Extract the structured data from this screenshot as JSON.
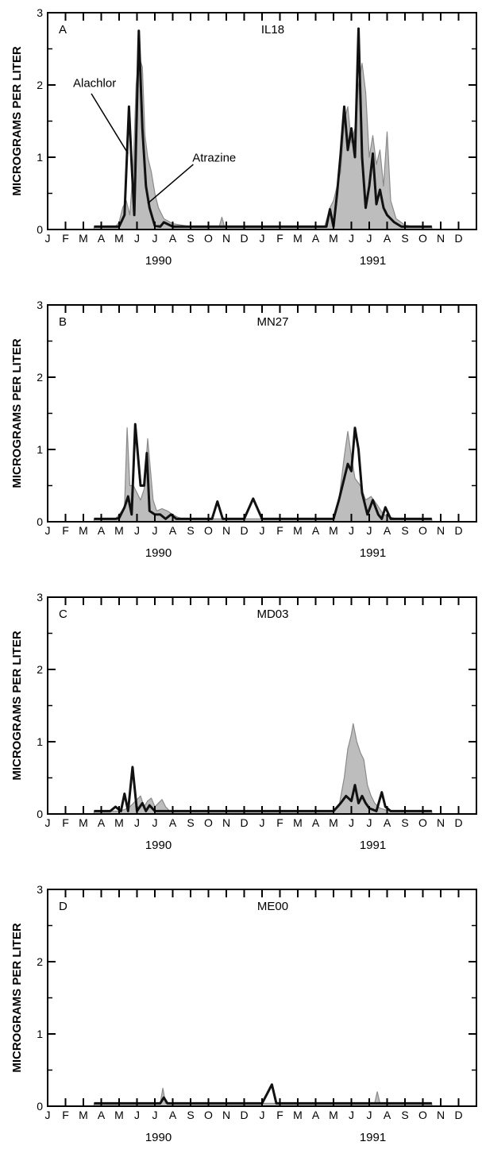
{
  "chart_data": [
    {
      "type": "area",
      "panel_letter": "A",
      "site": "IL18",
      "ylabel": "MICROGRAMS PER LITER",
      "ylim": [
        0,
        3
      ],
      "y_ticks": [
        "0",
        "1",
        "2",
        "3"
      ],
      "x_tick_labels": [
        "J",
        "F",
        "M",
        "A",
        "M",
        "J",
        "J",
        "A",
        "S",
        "O",
        "N",
        "D",
        "J",
        "F",
        "M",
        "A",
        "M",
        "J",
        "J",
        "A",
        "S",
        "O",
        "N",
        "D"
      ],
      "x_range_months": [
        0,
        24
      ],
      "year_labels": [
        "1990",
        "1991"
      ],
      "series_labels": {
        "alachlor": "Alachlor",
        "atrazine": "Atrazine"
      },
      "series": [
        {
          "name": "Atrazine",
          "style": "shaded area",
          "x": [
            2.6,
            3.5,
            3.8,
            4.0,
            4.2,
            4.4,
            4.6,
            4.8,
            4.95,
            5.1,
            5.3,
            5.45,
            5.6,
            5.8,
            6.0,
            6.2,
            6.5,
            7.0,
            7.5,
            8.0,
            9.0,
            9.6,
            9.75,
            9.9,
            10.5,
            11.0,
            12.0,
            13.0,
            14.0,
            15.5,
            15.8,
            16.0,
            16.2,
            16.4,
            16.6,
            16.8,
            17.0,
            17.2,
            17.4,
            17.6,
            17.8,
            18.0,
            18.2,
            18.4,
            18.6,
            18.8,
            19.0,
            19.2,
            19.5,
            20.0,
            20.5,
            21.5
          ],
          "y": [
            0.04,
            0.04,
            0.04,
            0.1,
            0.3,
            0.4,
            0.2,
            0.9,
            2.0,
            2.4,
            2.25,
            1.3,
            1.0,
            0.8,
            0.5,
            0.3,
            0.15,
            0.08,
            0.06,
            0.04,
            0.04,
            0.04,
            0.17,
            0.04,
            0.04,
            0.04,
            0.04,
            0.04,
            0.04,
            0.04,
            0.3,
            0.4,
            0.6,
            0.8,
            1.5,
            1.7,
            1.2,
            1.4,
            2.0,
            2.3,
            1.9,
            1.0,
            1.3,
            0.9,
            1.1,
            0.6,
            1.35,
            0.4,
            0.15,
            0.06,
            0.04,
            0.04
          ]
        },
        {
          "name": "Alachlor",
          "style": "heavy line",
          "x": [
            2.6,
            3.5,
            3.8,
            4.0,
            4.3,
            4.55,
            4.7,
            4.85,
            5.1,
            5.3,
            5.5,
            5.7,
            6.0,
            6.3,
            6.5,
            7.0,
            7.5,
            8.0,
            9.0,
            10.0,
            11.0,
            12.0,
            13.0,
            14.0,
            15.0,
            15.6,
            15.8,
            16.0,
            16.2,
            16.4,
            16.6,
            16.8,
            17.0,
            17.2,
            17.4,
            17.6,
            17.8,
            18.0,
            18.2,
            18.4,
            18.6,
            18.8,
            19.0,
            19.4,
            19.8,
            20.5,
            21.5
          ],
          "y": [
            0.04,
            0.04,
            0.04,
            0.04,
            0.2,
            1.7,
            0.9,
            0.2,
            2.75,
            1.4,
            0.6,
            0.3,
            0.05,
            0.04,
            0.1,
            0.04,
            0.04,
            0.04,
            0.04,
            0.04,
            0.04,
            0.04,
            0.04,
            0.04,
            0.04,
            0.04,
            0.28,
            0.04,
            0.5,
            1.05,
            1.7,
            1.1,
            1.4,
            1.0,
            2.78,
            1.0,
            0.3,
            0.6,
            1.05,
            0.35,
            0.55,
            0.3,
            0.2,
            0.1,
            0.04,
            0.04,
            0.04
          ]
        }
      ]
    },
    {
      "type": "area",
      "panel_letter": "B",
      "site": "MN27",
      "ylabel": "MICROGRAMS PER LITER",
      "ylim": [
        0,
        3
      ],
      "y_ticks": [
        "0",
        "1",
        "2",
        "3"
      ],
      "x_tick_labels": [
        "J",
        "F",
        "M",
        "A",
        "M",
        "J",
        "J",
        "A",
        "S",
        "O",
        "N",
        "D",
        "J",
        "F",
        "M",
        "A",
        "M",
        "J",
        "J",
        "A",
        "S",
        "O",
        "N",
        "D"
      ],
      "x_range_months": [
        0,
        24
      ],
      "year_labels": [
        "1990",
        "1991"
      ],
      "series": [
        {
          "name": "Atrazine",
          "style": "shaded area",
          "x": [
            2.6,
            3.5,
            3.8,
            4.0,
            4.3,
            4.45,
            4.6,
            4.8,
            5.0,
            5.2,
            5.4,
            5.6,
            5.9,
            6.1,
            6.4,
            6.7,
            7.0,
            7.3,
            7.6,
            8.0,
            9.0,
            10.0,
            11.0,
            12.0,
            13.0,
            14.0,
            15.5,
            16.0,
            16.3,
            16.6,
            16.8,
            17.0,
            17.2,
            17.5,
            17.8,
            18.1,
            18.4,
            18.8,
            19.2,
            19.6,
            20.0,
            21.5
          ],
          "y": [
            0.04,
            0.04,
            0.04,
            0.1,
            0.2,
            1.3,
            0.5,
            0.5,
            0.4,
            0.3,
            0.45,
            1.15,
            0.3,
            0.15,
            0.18,
            0.15,
            0.1,
            0.06,
            0.04,
            0.04,
            0.04,
            0.04,
            0.04,
            0.04,
            0.04,
            0.04,
            0.04,
            0.04,
            0.3,
            0.9,
            1.25,
            0.9,
            0.6,
            0.5,
            0.3,
            0.35,
            0.25,
            0.1,
            0.06,
            0.04,
            0.04,
            0.04
          ]
        },
        {
          "name": "Alachlor",
          "style": "heavy line",
          "x": [
            2.6,
            3.5,
            3.8,
            4.0,
            4.3,
            4.5,
            4.7,
            4.9,
            5.2,
            5.4,
            5.55,
            5.7,
            6.0,
            6.3,
            6.6,
            6.9,
            7.2,
            7.6,
            8.0,
            8.5,
            9.2,
            9.5,
            9.8,
            10.2,
            11.0,
            11.5,
            12.0,
            12.5,
            13.0,
            14.0,
            15.0,
            16.0,
            16.3,
            16.6,
            16.8,
            17.0,
            17.2,
            17.4,
            17.6,
            17.9,
            18.2,
            18.5,
            18.7,
            18.9,
            19.2,
            19.5,
            19.8,
            20.0,
            21.5
          ],
          "y": [
            0.04,
            0.04,
            0.04,
            0.05,
            0.2,
            0.35,
            0.1,
            1.35,
            0.5,
            0.5,
            0.95,
            0.15,
            0.1,
            0.1,
            0.04,
            0.1,
            0.04,
            0.04,
            0.04,
            0.04,
            0.04,
            0.28,
            0.04,
            0.04,
            0.04,
            0.32,
            0.04,
            0.04,
            0.04,
            0.04,
            0.04,
            0.04,
            0.3,
            0.6,
            0.8,
            0.7,
            1.3,
            1.0,
            0.4,
            0.1,
            0.3,
            0.1,
            0.04,
            0.2,
            0.04,
            0.04,
            0.04,
            0.04,
            0.04
          ]
        }
      ]
    },
    {
      "type": "area",
      "panel_letter": "C",
      "site": "MD03",
      "ylabel": "MICROGRAMS PER LITER",
      "ylim": [
        0,
        3
      ],
      "y_ticks": [
        "0",
        "1",
        "2",
        "3"
      ],
      "x_tick_labels": [
        "J",
        "F",
        "M",
        "A",
        "M",
        "J",
        "J",
        "A",
        "S",
        "O",
        "N",
        "D",
        "J",
        "F",
        "M",
        "A",
        "M",
        "J",
        "J",
        "A",
        "S",
        "O",
        "N",
        "D"
      ],
      "x_range_months": [
        0,
        24
      ],
      "year_labels": [
        "1990",
        "1991"
      ],
      "series": [
        {
          "name": "Atrazine",
          "style": "shaded area",
          "x": [
            2.6,
            3.5,
            4.0,
            4.3,
            4.6,
            4.8,
            5.0,
            5.2,
            5.4,
            5.6,
            5.8,
            6.0,
            6.2,
            6.4,
            6.6,
            6.8,
            7.0,
            7.5,
            8.0,
            9.0,
            10.0,
            11.0,
            12.0,
            13.0,
            14.0,
            15.0,
            15.5,
            16.0,
            16.3,
            16.6,
            16.8,
            17.0,
            17.1,
            17.3,
            17.5,
            17.7,
            17.9,
            18.1,
            18.3,
            18.6,
            19.0,
            19.5,
            20.0,
            21.5
          ],
          "y": [
            0.04,
            0.04,
            0.04,
            0.06,
            0.1,
            0.15,
            0.2,
            0.25,
            0.1,
            0.18,
            0.22,
            0.1,
            0.15,
            0.2,
            0.1,
            0.05,
            0.04,
            0.04,
            0.04,
            0.04,
            0.04,
            0.04,
            0.04,
            0.04,
            0.04,
            0.04,
            0.04,
            0.04,
            0.1,
            0.5,
            0.9,
            1.1,
            1.25,
            1.0,
            0.85,
            0.75,
            0.4,
            0.25,
            0.15,
            0.08,
            0.05,
            0.04,
            0.04,
            0.04
          ]
        },
        {
          "name": "Alachlor",
          "style": "heavy line",
          "x": [
            2.6,
            3.5,
            3.8,
            4.1,
            4.3,
            4.5,
            4.75,
            5.0,
            5.3,
            5.5,
            5.7,
            6.0,
            6.2,
            6.5,
            7.0,
            8.0,
            9.0,
            10.0,
            11.0,
            12.0,
            13.0,
            14.0,
            15.5,
            16.0,
            16.4,
            16.7,
            17.0,
            17.2,
            17.4,
            17.6,
            17.8,
            18.0,
            18.4,
            18.7,
            18.9,
            19.2,
            19.5,
            20.0,
            21.5
          ],
          "y": [
            0.04,
            0.04,
            0.1,
            0.04,
            0.28,
            0.04,
            0.65,
            0.04,
            0.15,
            0.04,
            0.12,
            0.04,
            0.04,
            0.04,
            0.04,
            0.04,
            0.04,
            0.04,
            0.04,
            0.04,
            0.04,
            0.04,
            0.04,
            0.04,
            0.15,
            0.25,
            0.18,
            0.4,
            0.15,
            0.25,
            0.15,
            0.08,
            0.04,
            0.3,
            0.1,
            0.04,
            0.04,
            0.04,
            0.04
          ]
        }
      ]
    },
    {
      "type": "area",
      "panel_letter": "D",
      "site": "ME00",
      "ylabel": "MICROGRAMS PER LITER",
      "ylim": [
        0,
        3
      ],
      "y_ticks": [
        "0",
        "1",
        "2",
        "3"
      ],
      "x_tick_labels": [
        "J",
        "F",
        "M",
        "A",
        "M",
        "J",
        "J",
        "A",
        "S",
        "O",
        "N",
        "D",
        "J",
        "F",
        "M",
        "A",
        "M",
        "J",
        "J",
        "A",
        "S",
        "O",
        "N",
        "D"
      ],
      "x_range_months": [
        0,
        24
      ],
      "year_labels": [
        "1990",
        "1991"
      ],
      "series": [
        {
          "name": "Atrazine",
          "style": "shaded area",
          "x": [
            2.6,
            6.0,
            6.3,
            6.45,
            6.6,
            6.9,
            7.0,
            12.0,
            18.0,
            18.3,
            18.45,
            18.6,
            18.9,
            21.5
          ],
          "y": [
            0.04,
            0.04,
            0.04,
            0.25,
            0.04,
            0.04,
            0.04,
            0.04,
            0.04,
            0.04,
            0.2,
            0.04,
            0.04,
            0.04
          ]
        },
        {
          "name": "Alachlor",
          "style": "heavy line",
          "x": [
            2.6,
            6.0,
            6.3,
            6.5,
            6.7,
            7.0,
            11.5,
            12.0,
            12.3,
            12.55,
            12.8,
            13.0,
            16.0,
            21.5
          ],
          "y": [
            0.04,
            0.04,
            0.04,
            0.12,
            0.04,
            0.04,
            0.04,
            0.04,
            0.18,
            0.3,
            0.04,
            0.04,
            0.04,
            0.04
          ]
        }
      ]
    }
  ],
  "colors": {
    "atrazine_fill": "#bdbdbd",
    "atrazine_edge": "#8a8a8a",
    "alachlor_line": "#111111",
    "axis": "#000000"
  }
}
